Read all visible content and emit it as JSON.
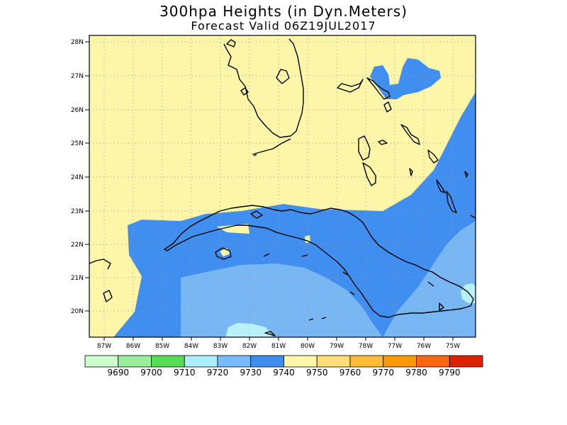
{
  "header": {
    "title": "300hpa Heights (in Dyn.Meters)",
    "subtitle": "Forecast Valid  06Z19JUL2017"
  },
  "map": {
    "lon_range": [
      -87.5,
      -74.5
    ],
    "lat_range": [
      19.3,
      26.2
    ],
    "lon_labels": [
      "87W",
      "86W",
      "85W",
      "84W",
      "83W",
      "82W",
      "81W",
      "80W",
      "79W",
      "78W",
      "77W",
      "76W",
      "75W"
    ],
    "lat_labels": [
      "20N",
      "21N",
      "22N",
      "23N",
      "24N",
      "25N",
      "26N"
    ],
    "grid": "dotted",
    "field_colors": {
      "9720": "#b8f2f8",
      "9730": "#78b6f4",
      "9740": "#3f8ef0",
      "9750": "#fdf6a8"
    }
  },
  "colorbar": {
    "labels": [
      "9690",
      "9700",
      "9710",
      "9720",
      "9730",
      "9740",
      "9750",
      "9760",
      "9770",
      "9780",
      "9790"
    ],
    "colors": [
      "#ccffcc",
      "#99ee99",
      "#55dd55",
      "#aaeeff",
      "#77bbff",
      "#3f8ef0",
      "#fff6aa",
      "#ffdd77",
      "#ffbb33",
      "#ff9900",
      "#ff6611",
      "#dd2200"
    ]
  }
}
